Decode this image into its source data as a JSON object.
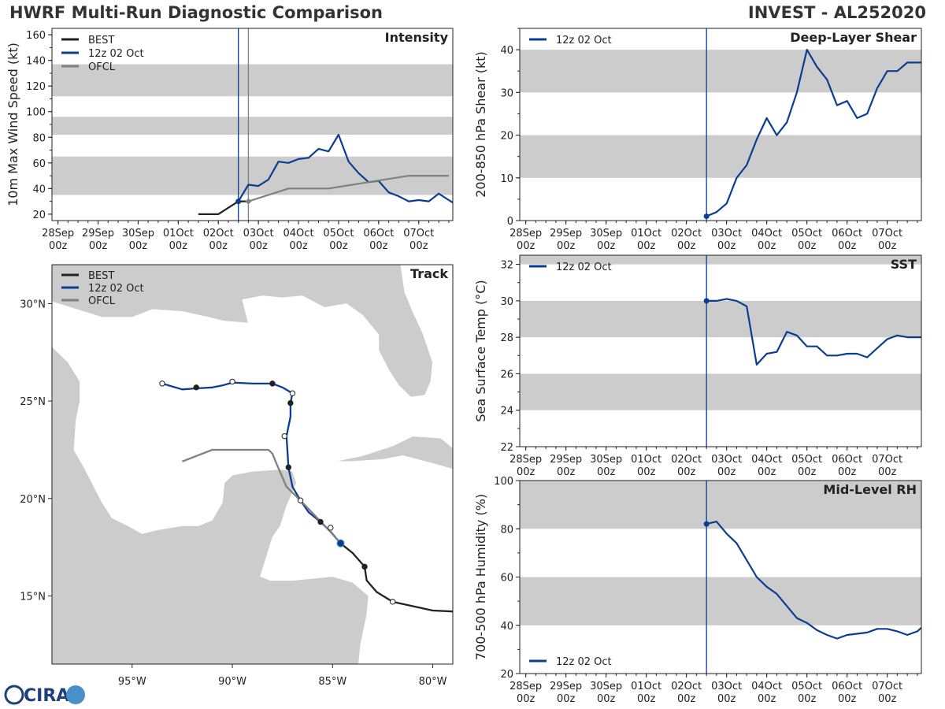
{
  "header": {
    "title": "HWRF Multi-Run Diagnostic Comparison",
    "storm": "INVEST - AL252020"
  },
  "logo": {
    "text": "CIRA",
    "colors": {
      "primary": "#1f3f7a",
      "accent": "#4a90c8"
    }
  },
  "colors": {
    "best": "#222222",
    "hwrf": "#0b3d91",
    "ofcl": "#808080",
    "band": "#cccccc",
    "land": "#cccccc"
  },
  "time_axis": {
    "tick_days": [
      0,
      1,
      2,
      3,
      4,
      5,
      6,
      7,
      8,
      9
    ],
    "tick_labels": [
      "28Sep\n00z",
      "29Sep\n00z",
      "30Sep\n00z",
      "01Oct\n00z",
      "02Oct\n00z",
      "03Oct\n00z",
      "04Oct\n00z",
      "05Oct\n00z",
      "06Oct\n00z",
      "07Oct\n00z"
    ],
    "range_days": [
      -0.15,
      9.85
    ],
    "init_day": 4.5
  },
  "chart_data": [
    {
      "id": "intensity",
      "type": "line",
      "title": "Intensity",
      "ylabel": "10m Max Wind Speed (kt)",
      "ylim": [
        15,
        165
      ],
      "yticks": [
        20,
        40,
        60,
        80,
        100,
        120,
        140,
        160
      ],
      "bands": [
        [
          35,
          65
        ],
        [
          82,
          96
        ],
        [
          112,
          137
        ]
      ],
      "vlines": [
        {
          "x": 4.5,
          "color": "#0b3d91"
        },
        {
          "x": 4.75,
          "color": "#808080"
        }
      ],
      "legend": [
        "BEST",
        "12z 02 Oct",
        "OFCL"
      ],
      "series": [
        {
          "name": "BEST",
          "x": [
            3.5,
            3.75,
            4.0,
            4.25,
            4.5,
            4.75
          ],
          "y": [
            20,
            20,
            20,
            25,
            30,
            30
          ]
        },
        {
          "name": "12z 02 Oct",
          "x": [
            4.5,
            4.75,
            5.0,
            5.25,
            5.5,
            5.75,
            6.0,
            6.25,
            6.5,
            6.75,
            7.0,
            7.25,
            7.5,
            7.75,
            8.0,
            8.25,
            8.5,
            8.75,
            9.0,
            9.25,
            9.5,
            9.75,
            9.85
          ],
          "y": [
            30,
            43,
            42,
            47,
            61,
            60,
            63,
            64,
            71,
            69,
            82,
            61,
            52,
            45,
            46,
            37,
            34,
            30,
            31,
            30,
            36,
            31,
            29
          ]
        },
        {
          "name": "OFCL",
          "x": [
            4.75,
            5.25,
            5.75,
            6.75,
            7.75,
            8.75,
            9.75
          ],
          "y": [
            30,
            35,
            40,
            40,
            45,
            50,
            50
          ]
        }
      ],
      "markers": [
        {
          "series": "12z 02 Oct",
          "x": 4.5,
          "y": 30,
          "shape": "circle"
        },
        {
          "series": "OFCL",
          "x": 4.75,
          "y": 30,
          "shape": "diamond"
        }
      ]
    },
    {
      "id": "shear",
      "type": "line",
      "title": "Deep-Layer Shear",
      "ylabel": "200-850 hPa Shear (kt)",
      "ylim": [
        0,
        45
      ],
      "yticks": [
        0,
        10,
        20,
        30,
        40
      ],
      "bands": [
        [
          10,
          20
        ],
        [
          30,
          40
        ]
      ],
      "vlines": [
        {
          "x": 4.5,
          "color": "#0b3d91"
        }
      ],
      "legend": [
        "12z 02 Oct"
      ],
      "series": [
        {
          "name": "12z 02 Oct",
          "x": [
            4.5,
            4.75,
            5.0,
            5.25,
            5.5,
            5.75,
            6.0,
            6.25,
            6.5,
            6.75,
            7.0,
            7.25,
            7.5,
            7.75,
            8.0,
            8.25,
            8.5,
            8.75,
            9.0,
            9.25,
            9.5,
            9.75,
            9.85
          ],
          "y": [
            1,
            2,
            4,
            10,
            13,
            19,
            24,
            20,
            23,
            30,
            40,
            36,
            33,
            27,
            28,
            24,
            25,
            31,
            35,
            35,
            37,
            37,
            37
          ]
        }
      ],
      "markers": [
        {
          "series": "12z 02 Oct",
          "x": 4.5,
          "y": 1,
          "shape": "circle"
        }
      ]
    },
    {
      "id": "sst",
      "type": "line",
      "title": "SST",
      "ylabel": "Sea Surface Temp (°C)",
      "ylim": [
        22,
        32.5
      ],
      "yticks": [
        22,
        24,
        26,
        28,
        30,
        32
      ],
      "bands": [
        [
          24,
          26
        ],
        [
          28,
          30
        ],
        [
          32,
          32.5
        ]
      ],
      "vlines": [
        {
          "x": 4.5,
          "color": "#0b3d91"
        }
      ],
      "legend": [
        "12z 02 Oct"
      ],
      "series": [
        {
          "name": "12z 02 Oct",
          "x": [
            4.5,
            4.75,
            5.0,
            5.25,
            5.5,
            5.75,
            6.0,
            6.25,
            6.5,
            6.75,
            7.0,
            7.25,
            7.5,
            7.75,
            8.0,
            8.25,
            8.5,
            8.75,
            9.0,
            9.25,
            9.5,
            9.75,
            9.85
          ],
          "y": [
            30.0,
            30.0,
            30.1,
            30.0,
            29.7,
            26.5,
            27.1,
            27.2,
            28.3,
            28.1,
            27.5,
            27.5,
            27.0,
            27.0,
            27.1,
            27.1,
            26.9,
            27.4,
            27.9,
            28.1,
            28.0,
            28.0,
            28.0
          ]
        }
      ],
      "markers": [
        {
          "series": "12z 02 Oct",
          "x": 4.5,
          "y": 30.0,
          "shape": "circle"
        }
      ]
    },
    {
      "id": "rh",
      "type": "line",
      "title": "Mid-Level RH",
      "ylabel": "700-500 hPa Humidity (%)",
      "ylim": [
        20,
        100
      ],
      "yticks": [
        20,
        40,
        60,
        80,
        100
      ],
      "bands": [
        [
          40,
          60
        ],
        [
          80,
          100
        ]
      ],
      "vlines": [
        {
          "x": 4.5,
          "color": "#0b3d91"
        }
      ],
      "legend": [
        "12z 02 Oct"
      ],
      "series": [
        {
          "name": "12z 02 Oct",
          "x": [
            4.5,
            4.75,
            5.0,
            5.25,
            5.5,
            5.75,
            6.0,
            6.25,
            6.5,
            6.75,
            7.0,
            7.25,
            7.5,
            7.75,
            8.0,
            8.25,
            8.5,
            8.75,
            9.0,
            9.25,
            9.5,
            9.75,
            9.85
          ],
          "y": [
            82,
            83,
            78,
            74,
            67,
            60,
            56,
            53,
            48,
            43,
            41,
            38,
            36,
            34.5,
            36,
            36.5,
            37,
            38.5,
            38.5,
            37.5,
            36,
            37.5,
            39
          ]
        }
      ],
      "markers": [
        {
          "series": "12z 02 Oct",
          "x": 4.5,
          "y": 82,
          "shape": "circle"
        }
      ]
    },
    {
      "id": "track",
      "type": "map",
      "title": "Track",
      "lon_range": [
        -99,
        -79
      ],
      "lat_range": [
        11.5,
        32
      ],
      "lon_ticks": [
        -95,
        -90,
        -85,
        -80
      ],
      "lon_labels": [
        "95°W",
        "90°W",
        "85°W",
        "80°W"
      ],
      "lat_ticks": [
        15,
        20,
        25,
        30
      ],
      "lat_labels": [
        "15°N",
        "20°N",
        "25°N",
        "30°N"
      ],
      "legend": [
        "BEST",
        "12z 02 Oct",
        "OFCL"
      ],
      "tracks": [
        {
          "name": "BEST",
          "points": [
            [
              -79,
              14.2
            ],
            [
              -80,
              14.25
            ],
            [
              -82,
              14.7
            ],
            [
              -82.8,
              15.2
            ],
            [
              -83.3,
              15.8
            ],
            [
              -83.4,
              16.5
            ],
            [
              -84.0,
              17.2
            ],
            [
              -84.6,
              17.7
            ]
          ],
          "markers": [
            {
              "lon": -82,
              "lat": 14.7,
              "filled": false
            },
            {
              "lon": -83.4,
              "lat": 16.5,
              "filled": true
            }
          ]
        },
        {
          "name": "12z 02 Oct",
          "points": [
            [
              -84.6,
              17.7
            ],
            [
              -85.1,
              18.3
            ],
            [
              -85.6,
              18.8
            ],
            [
              -86.2,
              19.3
            ],
            [
              -86.6,
              19.9
            ],
            [
              -87.0,
              20.6
            ],
            [
              -87.2,
              21.6
            ],
            [
              -87.3,
              23.2
            ],
            [
              -87.1,
              24.2
            ],
            [
              -87.1,
              24.9
            ],
            [
              -87.0,
              25.4
            ],
            [
              -87.5,
              25.7
            ],
            [
              -88.0,
              25.9
            ],
            [
              -89.0,
              25.9
            ],
            [
              -90.0,
              25.95
            ],
            [
              -90.5,
              25.8
            ],
            [
              -91.0,
              25.7
            ],
            [
              -91.8,
              25.65
            ],
            [
              -92.5,
              25.6
            ],
            [
              -93.5,
              25.9
            ]
          ],
          "markers": [
            {
              "lon": -84.6,
              "lat": 17.7,
              "filled": true,
              "big": true
            },
            {
              "lon": -85.6,
              "lat": 18.8,
              "filled": true
            },
            {
              "lon": -86.6,
              "lat": 19.9,
              "filled": false
            },
            {
              "lon": -87.2,
              "lat": 21.6,
              "filled": true
            },
            {
              "lon": -87.4,
              "lat": 23.2,
              "filled": false
            },
            {
              "lon": -87.1,
              "lat": 24.9,
              "filled": true
            },
            {
              "lon": -87.0,
              "lat": 25.4,
              "filled": false
            },
            {
              "lon": -88.0,
              "lat": 25.9,
              "filled": true
            },
            {
              "lon": -90.0,
              "lat": 26.0,
              "filled": false
            },
            {
              "lon": -91.8,
              "lat": 25.7,
              "filled": true
            },
            {
              "lon": -93.5,
              "lat": 25.9,
              "filled": false
            }
          ]
        },
        {
          "name": "OFCL",
          "points": [
            [
              -84.6,
              17.7
            ],
            [
              -85.2,
              18.4
            ],
            [
              -86.6,
              19.9
            ],
            [
              -87.3,
              20.6
            ],
            [
              -87.8,
              21.8
            ],
            [
              -88.0,
              22.3
            ],
            [
              -88.2,
              22.5
            ],
            [
              -89.0,
              22.5
            ],
            [
              -90.0,
              22.5
            ],
            [
              -91.0,
              22.5
            ],
            [
              -92.5,
              21.9
            ]
          ],
          "markers": [
            {
              "lon": -85.1,
              "lat": 18.5,
              "filled": false
            }
          ]
        }
      ],
      "land": [
        [
          [
            -99,
            27.8
          ],
          [
            -98.2,
            27.0
          ],
          [
            -97.6,
            26.0
          ],
          [
            -97.6,
            25.0
          ],
          [
            -97.8,
            24.0
          ],
          [
            -97.9,
            22.5
          ],
          [
            -97.4,
            21.6
          ],
          [
            -97.0,
            20.8
          ],
          [
            -96.5,
            19.8
          ],
          [
            -96.0,
            19.0
          ],
          [
            -95.2,
            18.6
          ],
          [
            -94.5,
            18.2
          ],
          [
            -93.7,
            18.4
          ],
          [
            -92.5,
            18.6
          ],
          [
            -91.7,
            18.6
          ],
          [
            -91.0,
            18.9
          ],
          [
            -90.5,
            19.8
          ],
          [
            -90.4,
            20.8
          ],
          [
            -90.0,
            21.2
          ],
          [
            -89.0,
            21.4
          ],
          [
            -87.6,
            21.5
          ],
          [
            -87.0,
            21.4
          ],
          [
            -86.8,
            20.8
          ],
          [
            -87.3,
            19.6
          ],
          [
            -87.6,
            18.6
          ],
          [
            -88.0,
            18.0
          ],
          [
            -88.3,
            17.0
          ],
          [
            -88.6,
            16.0
          ],
          [
            -88.1,
            15.8
          ],
          [
            -87.0,
            15.8
          ],
          [
            -86.0,
            15.9
          ],
          [
            -85.0,
            16.0
          ],
          [
            -84.0,
            15.7
          ],
          [
            -83.2,
            15.0
          ],
          [
            -83.3,
            14.0
          ],
          [
            -83.6,
            12.5
          ],
          [
            -83.7,
            11.5
          ],
          [
            -99,
            11.5
          ]
        ],
        [
          [
            -99,
            30.1
          ],
          [
            -96.5,
            29.3
          ],
          [
            -95.0,
            29.3
          ],
          [
            -94.0,
            29.7
          ],
          [
            -92.5,
            29.6
          ],
          [
            -91.2,
            29.3
          ],
          [
            -90.4,
            29.1
          ],
          [
            -89.2,
            29.0
          ],
          [
            -89.5,
            30.2
          ],
          [
            -88.5,
            30.4
          ],
          [
            -87.5,
            30.3
          ],
          [
            -86.5,
            30.4
          ],
          [
            -85.4,
            29.8
          ],
          [
            -84.3,
            30.0
          ],
          [
            -83.5,
            29.4
          ],
          [
            -82.7,
            28.4
          ],
          [
            -82.7,
            27.6
          ],
          [
            -82.2,
            26.6
          ],
          [
            -81.7,
            25.8
          ],
          [
            -81.1,
            25.2
          ],
          [
            -80.4,
            25.3
          ],
          [
            -80.1,
            26.0
          ],
          [
            -80.0,
            27.0
          ],
          [
            -80.5,
            28.5
          ],
          [
            -81.0,
            29.6
          ],
          [
            -81.4,
            30.6
          ],
          [
            -81.6,
            32
          ],
          [
            -99,
            32
          ]
        ],
        [
          [
            -84.9,
            21.9
          ],
          [
            -83.5,
            22.2
          ],
          [
            -82.0,
            22.7
          ],
          [
            -81.0,
            23.2
          ],
          [
            -79.6,
            23.1
          ],
          [
            -79,
            22.6
          ],
          [
            -79,
            21.5
          ],
          [
            -80.0,
            21.8
          ],
          [
            -81.5,
            22.2
          ],
          [
            -82.5,
            22.0
          ],
          [
            -84.0,
            21.9
          ],
          [
            -84.9,
            21.9
          ]
        ]
      ]
    }
  ]
}
